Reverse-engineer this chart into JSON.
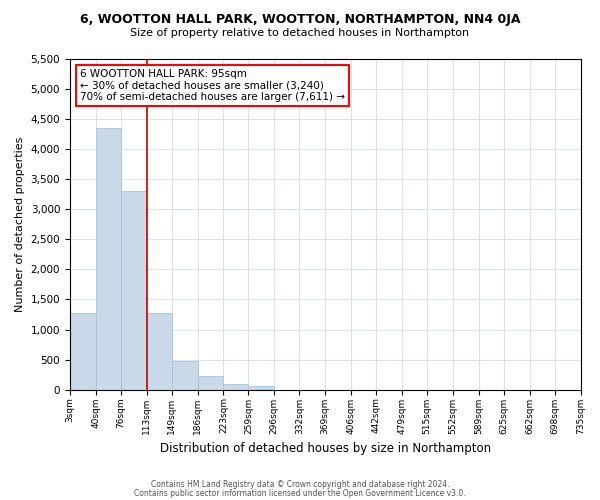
{
  "title1": "6, WOOTTON HALL PARK, WOOTTON, NORTHAMPTON, NN4 0JA",
  "title2": "Size of property relative to detached houses in Northampton",
  "xlabel": "Distribution of detached houses by size in Northampton",
  "ylabel": "Number of detached properties",
  "annotation_line1": "6 WOOTTON HALL PARK: 95sqm",
  "annotation_line2": "← 30% of detached houses are smaller (3,240)",
  "annotation_line3": "70% of semi-detached houses are larger (7,611) →",
  "footer1": "Contains HM Land Registry data © Crown copyright and database right 2024.",
  "footer2": "Contains public sector information licensed under the Open Government Licence v3.0.",
  "bar_color": "#c9d9e8",
  "bar_edge_color": "#a8c4d8",
  "grid_color": "#d0d8e0",
  "vline_color": "#cc0000",
  "vline_x_bin": 2,
  "background_color": "#ffffff",
  "ylim": [
    0,
    5500
  ],
  "yticks": [
    0,
    500,
    1000,
    1500,
    2000,
    2500,
    3000,
    3500,
    4000,
    4500,
    5000,
    5500
  ],
  "bin_edges": [
    3,
    40,
    76,
    113,
    149,
    186,
    223,
    259,
    296,
    332,
    369,
    406,
    442,
    479,
    515,
    552,
    589,
    625,
    662,
    698,
    735
  ],
  "bin_labels": [
    "3sqm",
    "40sqm",
    "76sqm",
    "113sqm",
    "149sqm",
    "186sqm",
    "223sqm",
    "259sqm",
    "296sqm",
    "332sqm",
    "369sqm",
    "406sqm",
    "442sqm",
    "479sqm",
    "515sqm",
    "552sqm",
    "589sqm",
    "625sqm",
    "662sqm",
    "698sqm",
    "735sqm"
  ],
  "bar_heights": [
    1270,
    4350,
    3300,
    1270,
    470,
    230,
    95,
    65,
    0,
    0,
    0,
    0,
    0,
    0,
    0,
    0,
    0,
    0,
    0,
    0
  ]
}
